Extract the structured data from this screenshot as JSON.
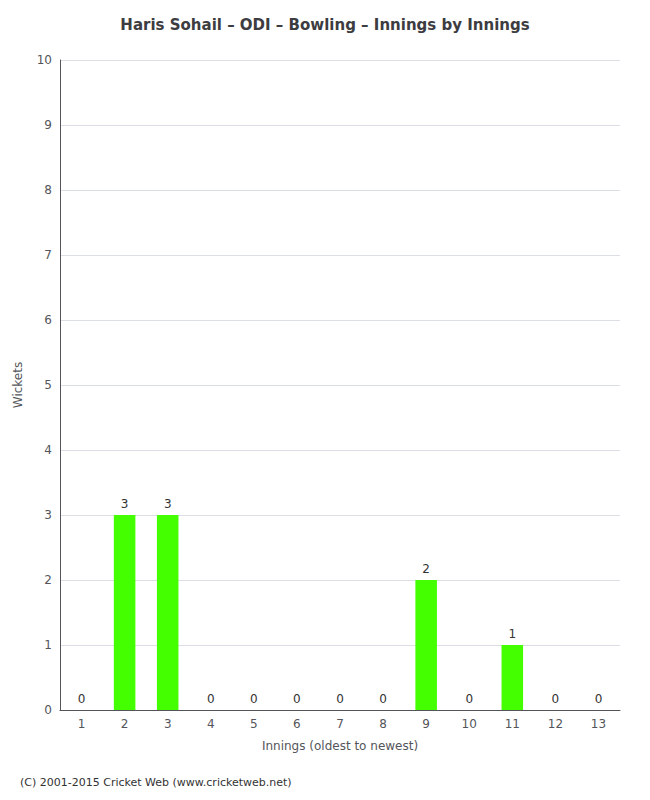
{
  "chart_data": {
    "type": "bar",
    "title": "Haris Sohail – ODI – Bowling – Innings by Innings",
    "xlabel": "Innings (oldest to newest)",
    "ylabel": "Wickets",
    "categories": [
      "1",
      "2",
      "3",
      "4",
      "5",
      "6",
      "7",
      "8",
      "9",
      "10",
      "11",
      "12",
      "13"
    ],
    "values": [
      0,
      3,
      3,
      0,
      0,
      0,
      0,
      0,
      2,
      0,
      1,
      0,
      0
    ],
    "color": "#44ff00",
    "ylim": [
      0,
      10
    ],
    "yticks": [
      0,
      1,
      2,
      3,
      4,
      5,
      6,
      7,
      8,
      9,
      10
    ],
    "grid": true,
    "data_labels": true,
    "footer": "(C) 2001-2015 Cricket Web (www.cricketweb.net)"
  }
}
